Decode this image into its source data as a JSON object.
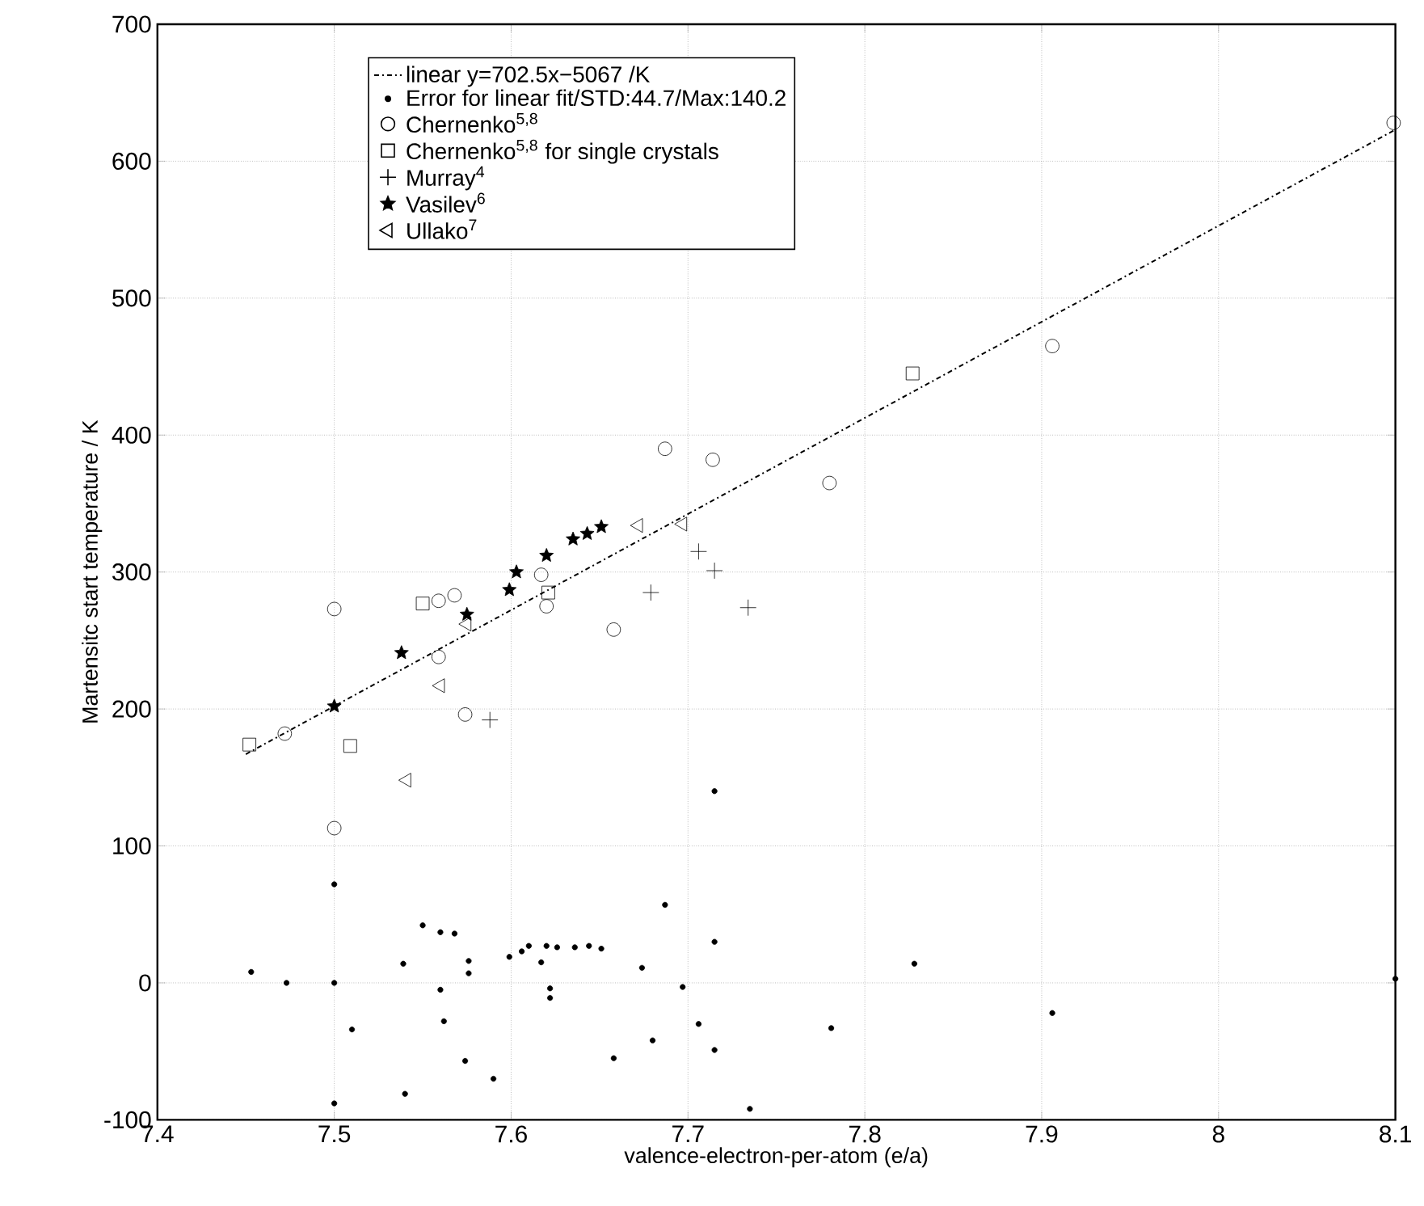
{
  "chart_data": {
    "type": "scatter",
    "xlabel": "valence-electron-per-atom (e/a)",
    "ylabel": "Martensitc start temperature / K",
    "xlim": [
      7.4,
      8.1
    ],
    "ylim": [
      -100,
      700
    ],
    "xticks": [
      7.4,
      7.5,
      7.6,
      7.7,
      7.8,
      7.9,
      8,
      8.1
    ],
    "yticks": [
      -100,
      0,
      100,
      200,
      300,
      400,
      500,
      600,
      700
    ],
    "grid": true,
    "legend": "top",
    "series": [
      {
        "name": "linear y=702.5x−5067 /K",
        "type": "line",
        "line_style": "dashed",
        "marker": "none",
        "color": "#000000",
        "x": [
          7.45,
          8.1
        ],
        "values": [
          167,
          623
        ]
      },
      {
        "name": "Error for linear fit/STD:44.7/Max:140.2",
        "marker": "point",
        "color": "#000000",
        "x": [
          7.453,
          7.473,
          7.5,
          7.5,
          7.5,
          7.51,
          7.539,
          7.54,
          7.55,
          7.56,
          7.568,
          7.56,
          7.562,
          7.576,
          7.576,
          7.574,
          7.59,
          7.599,
          7.606,
          7.61,
          7.617,
          7.62,
          7.626,
          7.622,
          7.622,
          7.636,
          7.644,
          7.651,
          7.658,
          7.674,
          7.68,
          7.687,
          7.697,
          7.706,
          7.715,
          7.715,
          7.715,
          7.735,
          7.781,
          7.828,
          7.906,
          8.1
        ],
        "values": [
          8,
          0,
          72,
          0,
          -88,
          -34,
          14,
          -81,
          42,
          37,
          36,
          -5,
          -28,
          16,
          7,
          -57,
          -70,
          19,
          23,
          27,
          15,
          27,
          26,
          -4,
          -11,
          26,
          27,
          25,
          -55,
          11,
          -42,
          57,
          -3,
          -30,
          30,
          -49,
          140,
          -92,
          -33,
          14,
          -22,
          3
        ]
      },
      {
        "name": "Chernenko$^{5,8}$",
        "marker": "circle",
        "color": "#000000",
        "x": [
          7.472,
          7.5,
          7.5,
          7.559,
          7.559,
          7.568,
          7.574,
          7.617,
          7.62,
          7.658,
          7.687,
          7.714,
          7.78,
          7.906,
          8.099
        ],
        "values": [
          182,
          273,
          113,
          238,
          279,
          283,
          196,
          298,
          275,
          258,
          390,
          382,
          365,
          465,
          628
        ]
      },
      {
        "name": "Chernenko$^{5,8}$ for single crystals",
        "marker": "square",
        "color": "#000000",
        "x": [
          7.452,
          7.509,
          7.55,
          7.621,
          7.827
        ],
        "values": [
          174,
          173,
          277,
          285,
          445
        ]
      },
      {
        "name": "Murray$^{4}$",
        "marker": "cross",
        "color": "#000000",
        "x": [
          7.588,
          7.679,
          7.706,
          7.715,
          7.734
        ],
        "values": [
          192,
          285,
          315,
          301,
          274
        ]
      },
      {
        "name": "Vasilev$^{6}$",
        "marker": "star",
        "color": "#000000",
        "x": [
          7.5,
          7.538,
          7.575,
          7.599,
          7.603,
          7.62,
          7.635,
          7.643,
          7.651
        ],
        "values": [
          202,
          241,
          269,
          287,
          300,
          312,
          324,
          328,
          333
        ]
      },
      {
        "name": "Ullako$^{7}$",
        "marker": "triangle",
        "color": "#000000",
        "x": [
          7.541,
          7.56,
          7.575,
          7.672,
          7.697
        ],
        "values": [
          148,
          217,
          262,
          334,
          335
        ]
      }
    ]
  }
}
